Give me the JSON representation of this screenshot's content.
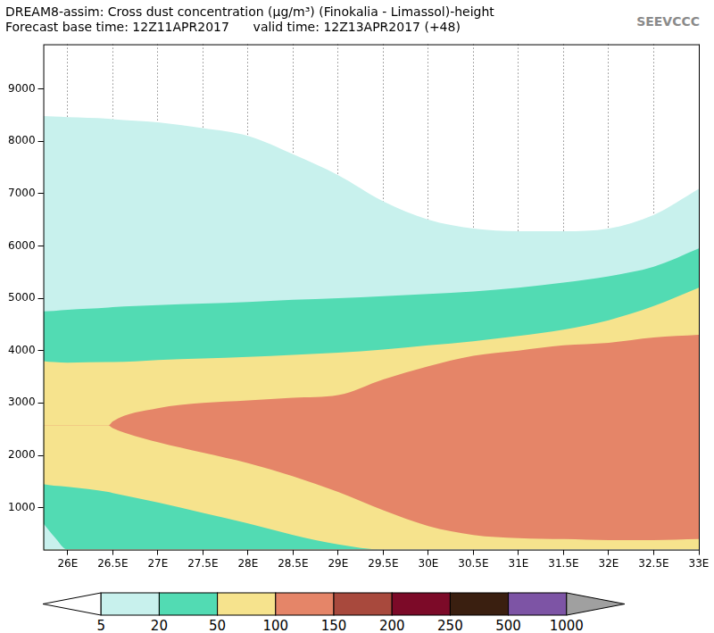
{
  "chart_data": {
    "type": "area",
    "title": "DREAM8-assim: Cross dust concentration (µg/m³) (Finokalia - Limassol)-height",
    "subtitle": "Forecast base time: 12Z11APR2017      valid time: 12Z13APR2017 (+48)",
    "annotations": [
      "SEEVCCC"
    ],
    "x": [
      25.73,
      25.85,
      26,
      26.45,
      26.5,
      27,
      27.5,
      28,
      28.5,
      29,
      29.5,
      30,
      30.5,
      31,
      31.5,
      32,
      32.5,
      33
    ],
    "series": [
      {
        "color": "#c8f1ed",
        "values": [
          700,
          450,
          200,
          200,
          200,
          200,
          200,
          200,
          200,
          200,
          200,
          200,
          200,
          200,
          200,
          200,
          200,
          200
        ]
      },
      {
        "color": "#52dbb3",
        "values": [
          1450,
          1420,
          1400,
          1300,
          1280,
          1100,
          900,
          700,
          480,
          300,
          200,
          200,
          200,
          200,
          200,
          200,
          200,
          200
        ]
      },
      {
        "color": "#f6e38d",
        "values": [
          2570,
          2570,
          2570,
          2570,
          2520,
          2250,
          2050,
          1850,
          1600,
          1300,
          950,
          650,
          480,
          420,
          400,
          380,
          380,
          400
        ]
      },
      {
        "color": "#e58568",
        "values": [
          2570,
          2570,
          2570,
          2570,
          2650,
          2900,
          3000,
          3050,
          3100,
          3150,
          3450,
          3700,
          3900,
          4000,
          4100,
          4150,
          4250,
          4300
        ]
      },
      {
        "color": "#f6e38d",
        "values": [
          3800,
          3780,
          3770,
          3780,
          3780,
          3820,
          3850,
          3880,
          3920,
          3960,
          4020,
          4100,
          4180,
          4280,
          4400,
          4580,
          4850,
          5200
        ]
      },
      {
        "color": "#52dbb3",
        "values": [
          4750,
          4760,
          4780,
          4820,
          4830,
          4870,
          4900,
          4930,
          4970,
          5000,
          5040,
          5080,
          5130,
          5200,
          5300,
          5420,
          5600,
          5950
        ]
      },
      {
        "color": "#c8f1ed",
        "values": [
          8480,
          8470,
          8460,
          8430,
          8420,
          8360,
          8250,
          8100,
          7750,
          7350,
          6850,
          6500,
          6330,
          6280,
          6280,
          6330,
          6590,
          7090
        ]
      }
    ],
    "xlim": [
      25.73,
      33
    ],
    "ylim": [
      200,
      9850
    ],
    "xticks": [
      {
        "value": 26,
        "label": "26E"
      },
      {
        "value": 26.5,
        "label": "26.5E"
      },
      {
        "value": 27,
        "label": "27E"
      },
      {
        "value": 27.5,
        "label": "27.5E"
      },
      {
        "value": 28,
        "label": "28E"
      },
      {
        "value": 28.5,
        "label": "28.5E"
      },
      {
        "value": 29,
        "label": "29E"
      },
      {
        "value": 29.5,
        "label": "29.5E"
      },
      {
        "value": 30,
        "label": "30E"
      },
      {
        "value": 30.5,
        "label": "30.5E"
      },
      {
        "value": 31,
        "label": "31E"
      },
      {
        "value": 31.5,
        "label": "31.5E"
      },
      {
        "value": 32,
        "label": "32E"
      },
      {
        "value": 32.5,
        "label": "32.5E"
      },
      {
        "value": 33,
        "label": "33E"
      }
    ],
    "yticks": [
      1000,
      2000,
      3000,
      4000,
      5000,
      6000,
      7000,
      8000,
      9000
    ],
    "grid": "x",
    "colorbar": {
      "ticks": [
        5,
        20,
        50,
        100,
        150,
        200,
        250,
        500,
        1000
      ],
      "colors": [
        "#ffffff",
        "#c8f1ed",
        "#52dbb3",
        "#f6e38d",
        "#e58568",
        "#a8493d",
        "#7c0a28",
        "#3a1f10",
        "#7d54a5",
        "#a0a0a0"
      ]
    }
  }
}
